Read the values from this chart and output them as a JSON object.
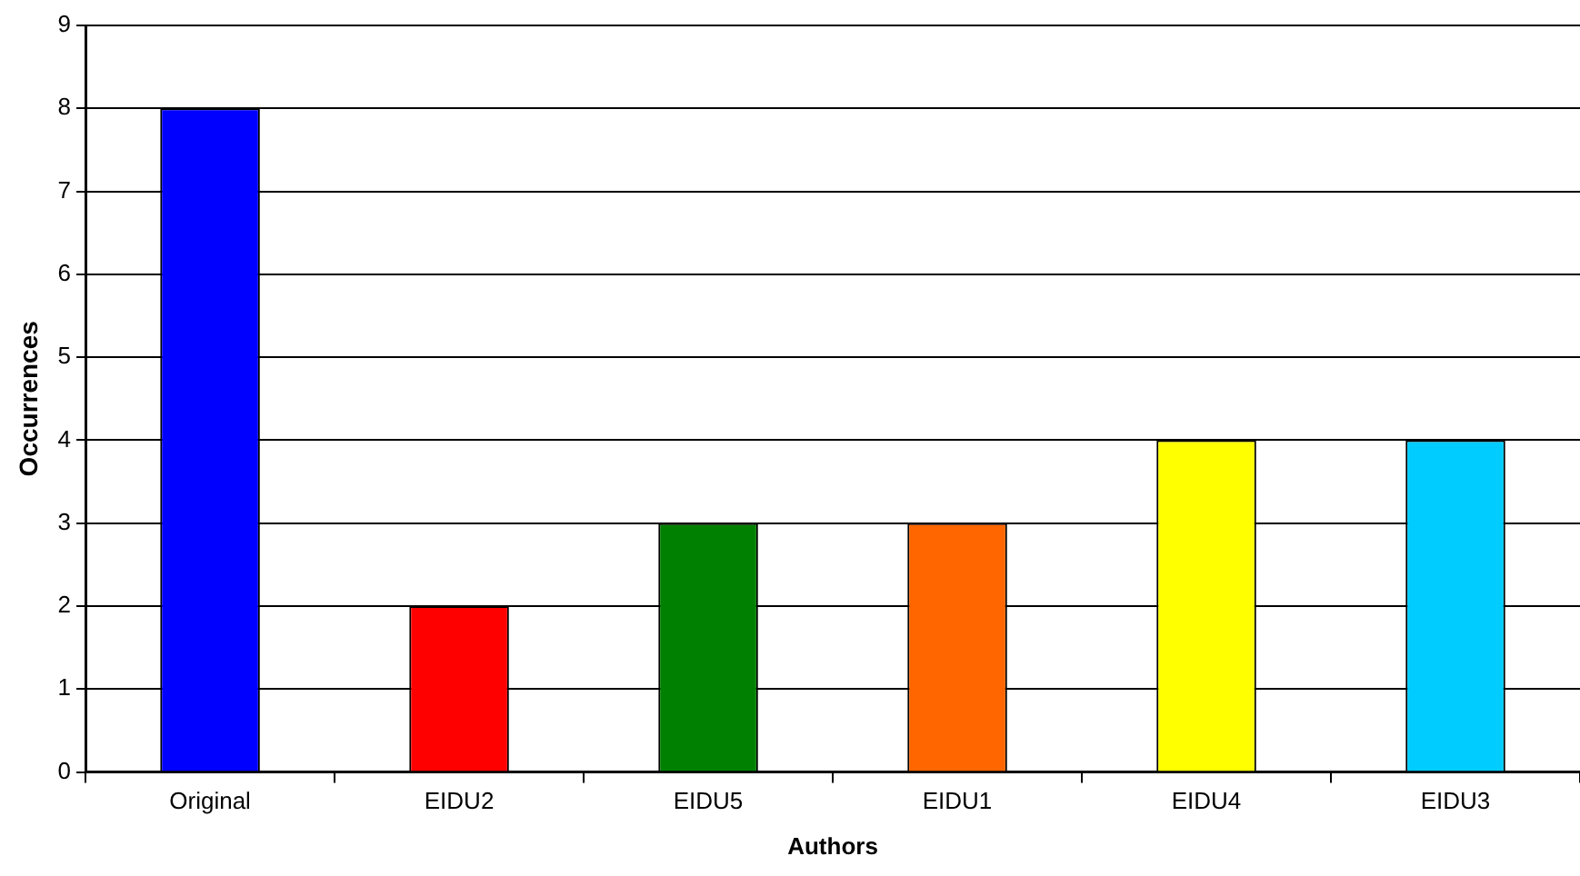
{
  "chart_data": {
    "type": "bar",
    "xlabel": "Authors",
    "ylabel": "Occurrences",
    "categories": [
      "Original",
      "EIDU2",
      "EIDU5",
      "EIDU1",
      "EIDU4",
      "EIDU3"
    ],
    "values": [
      8,
      2,
      3,
      3,
      4,
      4
    ],
    "colors": [
      "#0000ff",
      "#ff0000",
      "#008000",
      "#ff6600",
      "#ffff00",
      "#00ccff"
    ],
    "ylim": [
      0,
      9
    ],
    "yticks": [
      0,
      1,
      2,
      3,
      4,
      5,
      6,
      7,
      8,
      9
    ],
    "grid": "y",
    "legend": false
  }
}
